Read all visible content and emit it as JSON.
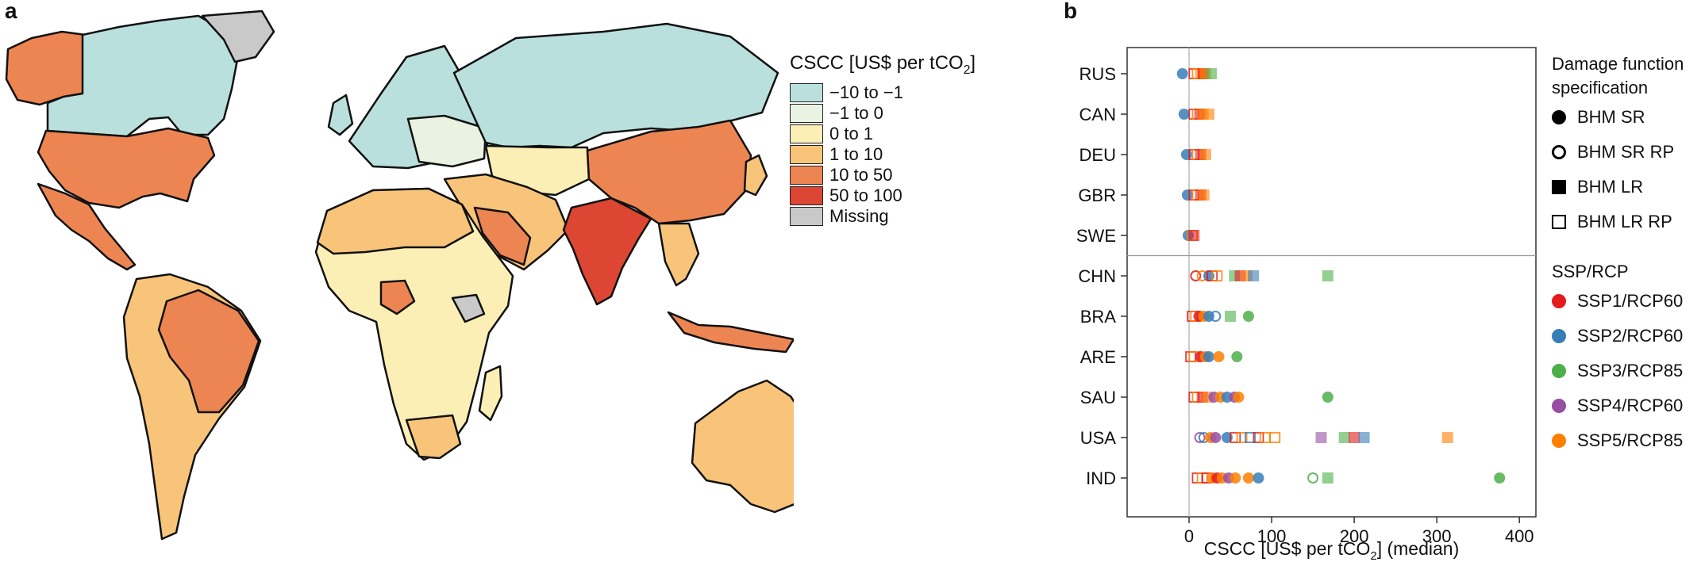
{
  "panel_labels": {
    "a": "a",
    "b": "b"
  },
  "map": {
    "legend_title": "CSCC [US$ per tCO",
    "legend_title_sub": "2",
    "legend_title_end": "]",
    "legend": [
      {
        "label": "−10 to −1",
        "color": "#b9e0dc"
      },
      {
        "label": "−1 to 0",
        "color": "#eaf3e2"
      },
      {
        "label": "0 to 1",
        "color": "#fbefb6"
      },
      {
        "label": "1 to 10",
        "color": "#f8c47a"
      },
      {
        "label": "10 to 50",
        "color": "#ed8553"
      },
      {
        "label": "50 to 100",
        "color": "#dc4632"
      },
      {
        "label": "Missing",
        "color": "#c9c9c9"
      }
    ]
  },
  "chart_data": {
    "type": "scatter",
    "xlabel": "CSCC [US$ per tCO",
    "xlabel_sub": "2",
    "xlabel_end": "] (median)",
    "xlim": [
      -75,
      420
    ],
    "xticks": [
      "0",
      "100",
      "200",
      "300",
      "400"
    ],
    "categories": [
      "RUS",
      "CAN",
      "DEU",
      "GBR",
      "SWE",
      "CHN",
      "BRA",
      "ARE",
      "SAU",
      "USA",
      "IND"
    ],
    "legend_damage_title": [
      "Damage function",
      "specification"
    ],
    "damage_specs": [
      {
        "name": "BHM SR",
        "marker": "filled-circle"
      },
      {
        "name": "BHM SR RP",
        "marker": "open-circle"
      },
      {
        "name": "BHM LR",
        "marker": "filled-square"
      },
      {
        "name": "BHM LR RP",
        "marker": "open-square"
      }
    ],
    "legend_scenario_title": "SSP/RCP",
    "scenarios": [
      {
        "name": "SSP1/RCP60",
        "color": "#e41a1c"
      },
      {
        "name": "SSP2/RCP60",
        "color": "#377eb8"
      },
      {
        "name": "SSP3/RCP85",
        "color": "#4daf4a"
      },
      {
        "name": "SSP4/RCP60",
        "color": "#984ea3"
      },
      {
        "name": "SSP5/RCP85",
        "color": "#ff7f00"
      }
    ],
    "points": [
      {
        "c": "RUS",
        "x": -8,
        "s": 1,
        "m": 0
      },
      {
        "c": "RUS",
        "x": 6,
        "s": 0,
        "m": 3
      },
      {
        "c": "RUS",
        "x": 10,
        "s": 4,
        "m": 3
      },
      {
        "c": "RUS",
        "x": 14,
        "s": 4,
        "m": 2
      },
      {
        "c": "RUS",
        "x": 17,
        "s": 0,
        "m": 2
      },
      {
        "c": "RUS",
        "x": 20,
        "s": 4,
        "m": 2
      },
      {
        "c": "RUS",
        "x": 27,
        "s": 2,
        "m": 2
      },
      {
        "c": "CAN",
        "x": -6,
        "s": 1,
        "m": 0
      },
      {
        "c": "CAN",
        "x": 6,
        "s": 0,
        "m": 3
      },
      {
        "c": "CAN",
        "x": 10,
        "s": 4,
        "m": 3
      },
      {
        "c": "CAN",
        "x": 13,
        "s": 0,
        "m": 2
      },
      {
        "c": "CAN",
        "x": 17,
        "s": 4,
        "m": 2
      },
      {
        "c": "CAN",
        "x": 24,
        "s": 4,
        "m": 2
      },
      {
        "c": "DEU",
        "x": -3,
        "s": 1,
        "m": 0
      },
      {
        "c": "DEU",
        "x": 6,
        "s": 0,
        "m": 3
      },
      {
        "c": "DEU",
        "x": 10,
        "s": 4,
        "m": 3
      },
      {
        "c": "DEU",
        "x": 14,
        "s": 0,
        "m": 2
      },
      {
        "c": "DEU",
        "x": 20,
        "s": 4,
        "m": 2
      },
      {
        "c": "GBR",
        "x": -2,
        "s": 1,
        "m": 0
      },
      {
        "c": "GBR",
        "x": 6,
        "s": 0,
        "m": 3
      },
      {
        "c": "GBR",
        "x": 10,
        "s": 4,
        "m": 3
      },
      {
        "c": "GBR",
        "x": 14,
        "s": 0,
        "m": 2
      },
      {
        "c": "GBR",
        "x": 18,
        "s": 4,
        "m": 2
      },
      {
        "c": "SWE",
        "x": -1,
        "s": 1,
        "m": 0
      },
      {
        "c": "SWE",
        "x": 4,
        "s": 4,
        "m": 3
      },
      {
        "c": "SWE",
        "x": 6,
        "s": 0,
        "m": 2
      },
      {
        "c": "CHN",
        "x": 8,
        "s": 0,
        "m": 1
      },
      {
        "c": "CHN",
        "x": 16,
        "s": 4,
        "m": 1
      },
      {
        "c": "CHN",
        "x": 24,
        "s": 1,
        "m": 0
      },
      {
        "c": "CHN",
        "x": 28,
        "s": 0,
        "m": 3
      },
      {
        "c": "CHN",
        "x": 34,
        "s": 4,
        "m": 3
      },
      {
        "c": "CHN",
        "x": 55,
        "s": 2,
        "m": 2
      },
      {
        "c": "CHN",
        "x": 62,
        "s": 0,
        "m": 2
      },
      {
        "c": "CHN",
        "x": 70,
        "s": 4,
        "m": 2
      },
      {
        "c": "CHN",
        "x": 78,
        "s": 1,
        "m": 2
      },
      {
        "c": "CHN",
        "x": 168,
        "s": 2,
        "m": 2
      },
      {
        "c": "BRA",
        "x": 4,
        "s": 0,
        "m": 3
      },
      {
        "c": "BRA",
        "x": 8,
        "s": 4,
        "m": 3
      },
      {
        "c": "BRA",
        "x": 12,
        "s": 0,
        "m": 0
      },
      {
        "c": "BRA",
        "x": 18,
        "s": 4,
        "m": 0
      },
      {
        "c": "BRA",
        "x": 24,
        "s": 1,
        "m": 0
      },
      {
        "c": "BRA",
        "x": 32,
        "s": 1,
        "m": 1
      },
      {
        "c": "BRA",
        "x": 50,
        "s": 2,
        "m": 2
      },
      {
        "c": "BRA",
        "x": 72,
        "s": 2,
        "m": 0
      },
      {
        "c": "ARE",
        "x": 2,
        "s": 0,
        "m": 3
      },
      {
        "c": "ARE",
        "x": 6,
        "s": 4,
        "m": 3
      },
      {
        "c": "ARE",
        "x": 14,
        "s": 0,
        "m": 0
      },
      {
        "c": "ARE",
        "x": 20,
        "s": 4,
        "m": 0
      },
      {
        "c": "ARE",
        "x": 24,
        "s": 1,
        "m": 0
      },
      {
        "c": "ARE",
        "x": 36,
        "s": 4,
        "m": 0
      },
      {
        "c": "ARE",
        "x": 58,
        "s": 2,
        "m": 0
      },
      {
        "c": "SAU",
        "x": 6,
        "s": 0,
        "m": 3
      },
      {
        "c": "SAU",
        "x": 10,
        "s": 4,
        "m": 3
      },
      {
        "c": "SAU",
        "x": 16,
        "s": 0,
        "m": 2
      },
      {
        "c": "SAU",
        "x": 22,
        "s": 4,
        "m": 2
      },
      {
        "c": "SAU",
        "x": 30,
        "s": 3,
        "m": 0
      },
      {
        "c": "SAU",
        "x": 38,
        "s": 4,
        "m": 0
      },
      {
        "c": "SAU",
        "x": 46,
        "s": 1,
        "m": 0
      },
      {
        "c": "SAU",
        "x": 55,
        "s": 3,
        "m": 0
      },
      {
        "c": "SAU",
        "x": 60,
        "s": 4,
        "m": 0
      },
      {
        "c": "SAU",
        "x": 168,
        "s": 2,
        "m": 0
      },
      {
        "c": "USA",
        "x": 13,
        "s": 3,
        "m": 1
      },
      {
        "c": "USA",
        "x": 18,
        "s": 1,
        "m": 1
      },
      {
        "c": "USA",
        "x": 26,
        "s": 4,
        "m": 0
      },
      {
        "c": "USA",
        "x": 32,
        "s": 3,
        "m": 0
      },
      {
        "c": "USA",
        "x": 46,
        "s": 1,
        "m": 0
      },
      {
        "c": "USA",
        "x": 56,
        "s": 0,
        "m": 3
      },
      {
        "c": "USA",
        "x": 64,
        "s": 4,
        "m": 3
      },
      {
        "c": "USA",
        "x": 74,
        "s": 1,
        "m": 3
      },
      {
        "c": "USA",
        "x": 84,
        "s": 0,
        "m": 3
      },
      {
        "c": "USA",
        "x": 92,
        "s": 4,
        "m": 3
      },
      {
        "c": "USA",
        "x": 104,
        "s": 4,
        "m": 3
      },
      {
        "c": "USA",
        "x": 160,
        "s": 3,
        "m": 2
      },
      {
        "c": "USA",
        "x": 188,
        "s": 2,
        "m": 2
      },
      {
        "c": "USA",
        "x": 200,
        "s": 0,
        "m": 2
      },
      {
        "c": "USA",
        "x": 212,
        "s": 1,
        "m": 2
      },
      {
        "c": "USA",
        "x": 313,
        "s": 4,
        "m": 2
      },
      {
        "c": "IND",
        "x": 10,
        "s": 0,
        "m": 3
      },
      {
        "c": "IND",
        "x": 16,
        "s": 4,
        "m": 3
      },
      {
        "c": "IND",
        "x": 22,
        "s": 0,
        "m": 3
      },
      {
        "c": "IND",
        "x": 28,
        "s": 4,
        "m": 0
      },
      {
        "c": "IND",
        "x": 34,
        "s": 0,
        "m": 0
      },
      {
        "c": "IND",
        "x": 40,
        "s": 4,
        "m": 0
      },
      {
        "c": "IND",
        "x": 48,
        "s": 3,
        "m": 0
      },
      {
        "c": "IND",
        "x": 56,
        "s": 4,
        "m": 0
      },
      {
        "c": "IND",
        "x": 72,
        "s": 4,
        "m": 0
      },
      {
        "c": "IND",
        "x": 84,
        "s": 1,
        "m": 0
      },
      {
        "c": "IND",
        "x": 150,
        "s": 2,
        "m": 1
      },
      {
        "c": "IND",
        "x": 168,
        "s": 2,
        "m": 2
      },
      {
        "c": "IND",
        "x": 376,
        "s": 2,
        "m": 0
      }
    ]
  }
}
